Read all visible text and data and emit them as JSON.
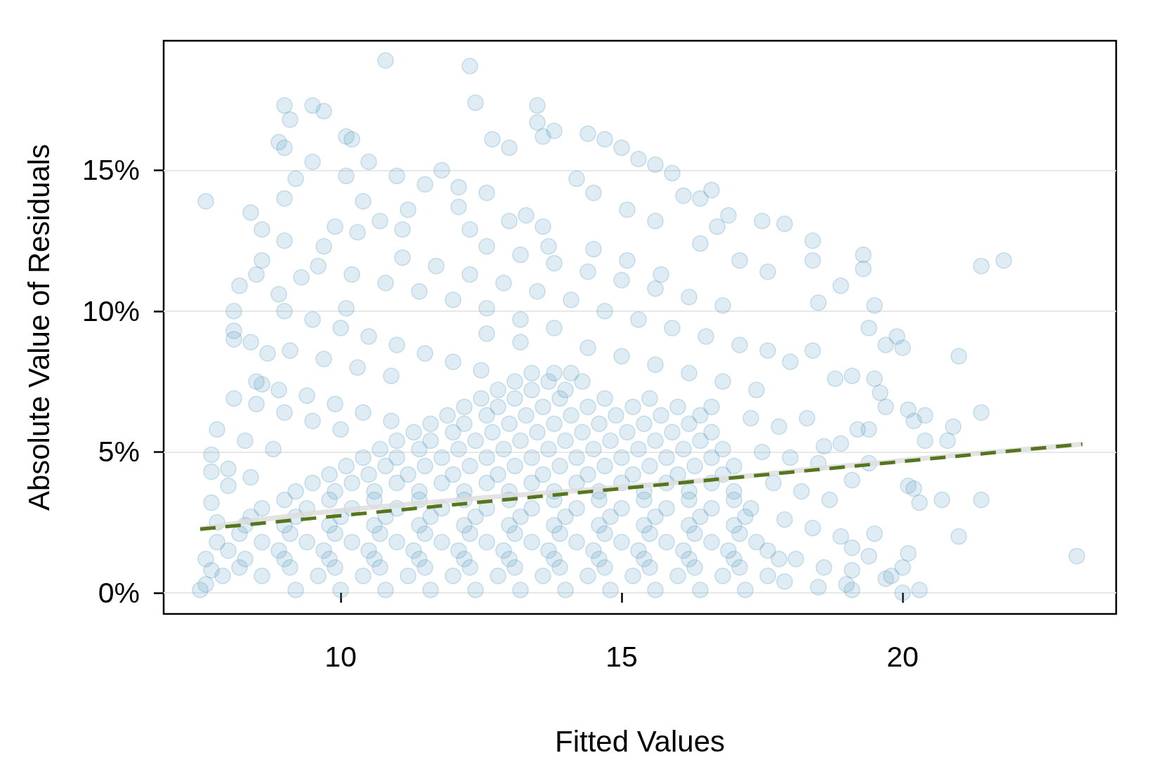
{
  "chart_data": {
    "type": "scatter",
    "xlabel": "Fitted Values",
    "ylabel": "Absolute Value of Residuals",
    "xlim": [
      6.85,
      23.8
    ],
    "ylim": [
      -0.75,
      19.6
    ],
    "xticks": [
      10,
      15,
      20
    ],
    "yticks": [
      {
        "value": 0,
        "label": "0%"
      },
      {
        "value": 5,
        "label": "5%"
      },
      {
        "value": 10,
        "label": "10%"
      },
      {
        "value": 15,
        "label": "15%"
      }
    ],
    "grid": "y",
    "series": [
      {
        "color": "#5a9ec2",
        "marker": "circle",
        "x": [
          10.8,
          12.3,
          12.4,
          9.0,
          9.1,
          9.5,
          9.7,
          13.5,
          13.5,
          13.8,
          13.6,
          10.1,
          10.2,
          8.9,
          9.0,
          12.7,
          13.0,
          14.4,
          14.7,
          15.0,
          15.3,
          15.6,
          15.9,
          9.5,
          10.5,
          9.2,
          10.1,
          7.6,
          8.4,
          8.6,
          9.0,
          10.4,
          10.7,
          9.0,
          11.0,
          11.5,
          11.8,
          12.1,
          12.1,
          12.6,
          12.3,
          13.3,
          13.6,
          13.7,
          14.2,
          14.5,
          15.1,
          15.6,
          16.1,
          16.4,
          16.6,
          17.5,
          17.9,
          16.9,
          16.7,
          11.2,
          11.1,
          9.9,
          10.3,
          13.0,
          8.6,
          8.5,
          8.2,
          8.1,
          8.9,
          9.3,
          9.6,
          10.2,
          10.8,
          11.4,
          12.0,
          12.6,
          11.1,
          11.7,
          12.3,
          12.9,
          13.5,
          14.1,
          12.6,
          13.2,
          13.8,
          14.4,
          15.0,
          15.6,
          16.2,
          16.8,
          14.5,
          15.1,
          15.7,
          16.4,
          17.1,
          17.6,
          18.4,
          18.4,
          18.5,
          18.9,
          19.3,
          19.3,
          19.5,
          21.4,
          21.8,
          9.7,
          10.1,
          8.1,
          8.1,
          8.4,
          8.7,
          9.0,
          9.5,
          10.0,
          10.5,
          11.0,
          11.5,
          12.0,
          12.5,
          9.1,
          9.7,
          10.3,
          10.9,
          13.2,
          13.8,
          14.7,
          15.3,
          15.9,
          16.5,
          17.1,
          17.6,
          14.4,
          15.0,
          15.6,
          16.2,
          16.8,
          17.4,
          18.0,
          18.4,
          18.8,
          19.1,
          19.5,
          19.7,
          19.9,
          20.0,
          19.4,
          21.0,
          8.5,
          8.6,
          14.1,
          13.2,
          12.6,
          8.1,
          8.5,
          9.0,
          9.5,
          10.0,
          8.9,
          9.4,
          9.9,
          10.4,
          10.9,
          7.8,
          7.7,
          7.7,
          8.0,
          8.3,
          8.8,
          8.4,
          7.7,
          8.0,
          17.3,
          17.8,
          18.3,
          18.6,
          17.5,
          18.0,
          18.5,
          17.7,
          18.2,
          18.7,
          17.9,
          18.4,
          18.9,
          17.6,
          18.1,
          18.6,
          17.9,
          18.5,
          19.1,
          19.0,
          19.1,
          19.4,
          19.1,
          19.5,
          19.1,
          19.4,
          19.4,
          19.2,
          18.9,
          19.6,
          19.7,
          20.1,
          20.2,
          20.4,
          20.9,
          20.8,
          20.4,
          20.1,
          20.2,
          20.3,
          20.1,
          20.0,
          19.8,
          19.7,
          20.0,
          20.3,
          20.7,
          21.0,
          21.4,
          21.4,
          23.1,
          7.5,
          7.6,
          7.7,
          7.8,
          9.2,
          10.0,
          10.8,
          11.6,
          12.4,
          13.2,
          14.0,
          14.8,
          15.6,
          16.4,
          17.2,
          7.9,
          8.6,
          9.6,
          10.4,
          11.2,
          12.0,
          12.8,
          13.6,
          14.4,
          15.2,
          16.0,
          16.8,
          17.6,
          7.6,
          8.3,
          9.0,
          9.8,
          10.6,
          11.4,
          12.2,
          13.0,
          13.8,
          14.6,
          15.4,
          16.2,
          17.0,
          17.8,
          7.8,
          8.6,
          9.4,
          10.2,
          11.0,
          11.8,
          12.6,
          13.4,
          14.2,
          15.0,
          15.8,
          16.6,
          17.4,
          8.3,
          9.0,
          9.8,
          10.6,
          11.4,
          12.2,
          13.0,
          13.8,
          14.6,
          15.4,
          16.2,
          17.0,
          8.6,
          9.4,
          10.2,
          11.0,
          11.8,
          12.6,
          13.4,
          14.2,
          15.0,
          15.8,
          16.6,
          17.3,
          9.2,
          9.9,
          10.6,
          11.4,
          12.2,
          13.0,
          13.8,
          14.6,
          15.4,
          16.2,
          17.0,
          9.8,
          10.5,
          11.2,
          12.0,
          12.8,
          13.6,
          14.4,
          15.2,
          16.0,
          16.8,
          10.4,
          11.0,
          11.8,
          12.6,
          13.4,
          14.2,
          15.0,
          15.8,
          16.6,
          11.0,
          11.6,
          12.4,
          13.2,
          14.0,
          14.8,
          15.6,
          16.4,
          11.6,
          12.2,
          13.0,
          13.8,
          14.6,
          15.4,
          16.2,
          12.2,
          12.8,
          13.6,
          14.4,
          15.2,
          16.0,
          16.6,
          12.8,
          13.4,
          14.0,
          13.4,
          13.8,
          8.2,
          9.1,
          9.9,
          10.7,
          11.5,
          12.3,
          13.1,
          13.9,
          14.7,
          15.5,
          16.3,
          17.1,
          8.0,
          8.9,
          9.7,
          10.5,
          11.3,
          12.1,
          12.9,
          13.7,
          14.5,
          15.3,
          16.1,
          16.9,
          8.2,
          9.1,
          9.9,
          10.7,
          11.5,
          12.3,
          13.1,
          13.9,
          14.7,
          15.5,
          16.3,
          17.1,
          8.4,
          9.2,
          10.0,
          10.8,
          11.6,
          12.4,
          13.2,
          14.0,
          14.8,
          15.6,
          16.4,
          17.2,
          9.0,
          9.8,
          10.6,
          11.4,
          12.2,
          13.0,
          13.8,
          14.6,
          15.4,
          16.2,
          17.0,
          9.5,
          10.2,
          11.0,
          11.8,
          12.6,
          13.4,
          14.2,
          15.0,
          15.8,
          16.6,
          10.1,
          10.8,
          11.5,
          12.3,
          13.1,
          13.9,
          14.7,
          15.5,
          16.3,
          17.0,
          10.7,
          11.4,
          12.1,
          12.9,
          13.7,
          14.5,
          15.3,
          16.1,
          16.8,
          11.3,
          12.0,
          12.7,
          13.5,
          14.3,
          15.1,
          15.9,
          16.6,
          11.9,
          12.6,
          13.3,
          14.1,
          14.9,
          15.7,
          16.4,
          12.5,
          13.1,
          13.9,
          14.7,
          15.5,
          13.1,
          13.7,
          14.3
        ],
        "values": [
          18.9,
          18.7,
          17.4,
          17.3,
          16.8,
          17.3,
          17.1,
          17.3,
          16.7,
          16.4,
          16.2,
          16.2,
          16.1,
          16.0,
          15.8,
          16.1,
          15.8,
          16.3,
          16.1,
          15.8,
          15.4,
          15.2,
          14.9,
          15.3,
          15.3,
          14.7,
          14.8,
          13.9,
          13.5,
          12.9,
          14.0,
          13.9,
          13.2,
          12.5,
          14.8,
          14.5,
          15.0,
          14.4,
          13.7,
          14.2,
          12.9,
          13.4,
          13.0,
          12.3,
          14.7,
          14.2,
          13.6,
          13.2,
          14.1,
          14.0,
          14.3,
          13.2,
          13.1,
          13.4,
          13.0,
          13.6,
          12.9,
          13.0,
          12.8,
          13.2,
          11.8,
          11.3,
          10.9,
          10.0,
          10.6,
          11.2,
          11.6,
          11.3,
          11.0,
          10.7,
          10.4,
          10.1,
          11.9,
          11.6,
          11.3,
          11.0,
          10.7,
          10.4,
          12.3,
          12.0,
          11.7,
          11.4,
          11.1,
          10.8,
          10.5,
          10.2,
          12.2,
          11.8,
          11.3,
          12.4,
          11.8,
          11.4,
          12.5,
          11.8,
          10.3,
          10.9,
          12.0,
          11.5,
          10.2,
          11.6,
          11.8,
          12.3,
          10.1,
          9.3,
          9.0,
          8.9,
          8.5,
          10.0,
          9.7,
          9.4,
          9.1,
          8.8,
          8.5,
          8.2,
          7.9,
          8.6,
          8.3,
          8.0,
          7.7,
          9.7,
          9.4,
          10.0,
          9.7,
          9.4,
          9.1,
          8.8,
          8.6,
          8.7,
          8.4,
          8.1,
          7.8,
          7.5,
          7.2,
          8.2,
          8.6,
          7.6,
          7.7,
          7.6,
          8.8,
          9.1,
          8.7,
          9.4,
          8.4,
          7.5,
          7.4,
          7.8,
          8.9,
          9.2,
          6.9,
          6.7,
          6.4,
          6.1,
          5.8,
          7.2,
          7.0,
          6.7,
          6.4,
          6.1,
          5.8,
          4.9,
          4.3,
          4.4,
          5.4,
          5.1,
          4.1,
          3.2,
          3.8,
          6.2,
          5.9,
          6.2,
          5.2,
          5.0,
          4.8,
          4.6,
          3.9,
          3.6,
          3.3,
          2.6,
          2.3,
          2.0,
          1.5,
          1.2,
          0.9,
          0.4,
          0.2,
          0.1,
          0.3,
          0.8,
          1.3,
          1.6,
          2.1,
          4.0,
          4.6,
          5.8,
          5.8,
          5.3,
          7.1,
          6.6,
          6.5,
          6.1,
          6.3,
          5.9,
          5.4,
          5.4,
          3.8,
          3.7,
          3.2,
          1.4,
          0.9,
          0.6,
          0.5,
          0.0,
          0.1,
          3.3,
          2.0,
          3.3,
          6.4,
          1.3,
          0.1,
          0.3,
          0.8,
          2.5,
          0.1,
          0.1,
          0.1,
          0.1,
          0.1,
          0.1,
          0.1,
          0.1,
          0.1,
          0.1,
          0.1,
          0.6,
          0.6,
          0.6,
          0.6,
          0.6,
          0.6,
          0.6,
          0.6,
          0.6,
          0.6,
          0.6,
          0.6,
          0.6,
          1.2,
          1.2,
          1.2,
          1.2,
          1.2,
          1.2,
          1.2,
          1.2,
          1.2,
          1.2,
          1.2,
          1.2,
          1.2,
          1.2,
          1.8,
          1.8,
          1.8,
          1.8,
          1.8,
          1.8,
          1.8,
          1.8,
          1.8,
          1.8,
          1.8,
          1.8,
          1.8,
          2.4,
          2.4,
          2.4,
          2.4,
          2.4,
          2.4,
          2.4,
          2.4,
          2.4,
          2.4,
          2.4,
          2.4,
          3.0,
          3.0,
          3.0,
          3.0,
          3.0,
          3.0,
          3.0,
          3.0,
          3.0,
          3.0,
          3.0,
          3.0,
          3.6,
          3.6,
          3.6,
          3.6,
          3.6,
          3.6,
          3.6,
          3.6,
          3.6,
          3.6,
          3.6,
          4.2,
          4.2,
          4.2,
          4.2,
          4.2,
          4.2,
          4.2,
          4.2,
          4.2,
          4.2,
          4.8,
          4.8,
          4.8,
          4.8,
          4.8,
          4.8,
          4.8,
          4.8,
          4.8,
          5.4,
          5.4,
          5.4,
          5.4,
          5.4,
          5.4,
          5.4,
          5.4,
          6.0,
          6.0,
          6.0,
          6.0,
          6.0,
          6.0,
          6.0,
          6.6,
          6.6,
          6.6,
          6.6,
          6.6,
          6.6,
          6.6,
          7.2,
          7.2,
          7.2,
          7.8,
          7.8,
          0.9,
          0.9,
          0.9,
          0.9,
          0.9,
          0.9,
          0.9,
          0.9,
          0.9,
          0.9,
          0.9,
          0.9,
          1.5,
          1.5,
          1.5,
          1.5,
          1.5,
          1.5,
          1.5,
          1.5,
          1.5,
          1.5,
          1.5,
          1.5,
          2.1,
          2.1,
          2.1,
          2.1,
          2.1,
          2.1,
          2.1,
          2.1,
          2.1,
          2.1,
          2.1,
          2.1,
          2.7,
          2.7,
          2.7,
          2.7,
          2.7,
          2.7,
          2.7,
          2.7,
          2.7,
          2.7,
          2.7,
          2.7,
          3.3,
          3.3,
          3.3,
          3.3,
          3.3,
          3.3,
          3.3,
          3.3,
          3.3,
          3.3,
          3.3,
          3.9,
          3.9,
          3.9,
          3.9,
          3.9,
          3.9,
          3.9,
          3.9,
          3.9,
          3.9,
          4.5,
          4.5,
          4.5,
          4.5,
          4.5,
          4.5,
          4.5,
          4.5,
          4.5,
          4.5,
          5.1,
          5.1,
          5.1,
          5.1,
          5.1,
          5.1,
          5.1,
          5.1,
          5.1,
          5.7,
          5.7,
          5.7,
          5.7,
          5.7,
          5.7,
          5.7,
          5.7,
          6.3,
          6.3,
          6.3,
          6.3,
          6.3,
          6.3,
          6.3,
          6.9,
          6.9,
          6.9,
          6.9,
          6.9,
          7.5,
          7.5,
          7.5
        ]
      },
      {
        "type": "line",
        "color": "#dcdcdc",
        "line_style": "solid",
        "x": [
          7.5,
          8.5,
          9.5,
          10.5,
          11.5,
          12.5,
          13.5,
          14.5,
          15.5,
          16.5,
          17.5,
          18.5,
          19.5,
          20.5,
          21.5,
          22.5,
          23.2
        ],
        "values": [
          2.26,
          2.58,
          2.82,
          3.02,
          3.2,
          3.37,
          3.52,
          3.67,
          3.83,
          4.0,
          4.2,
          4.42,
          4.6,
          4.8,
          4.98,
          5.15,
          5.28
        ]
      },
      {
        "type": "line",
        "color": "#56761e",
        "line_style": "dashed",
        "x": [
          7.5,
          23.2
        ],
        "values": [
          2.26,
          5.28
        ]
      }
    ]
  }
}
